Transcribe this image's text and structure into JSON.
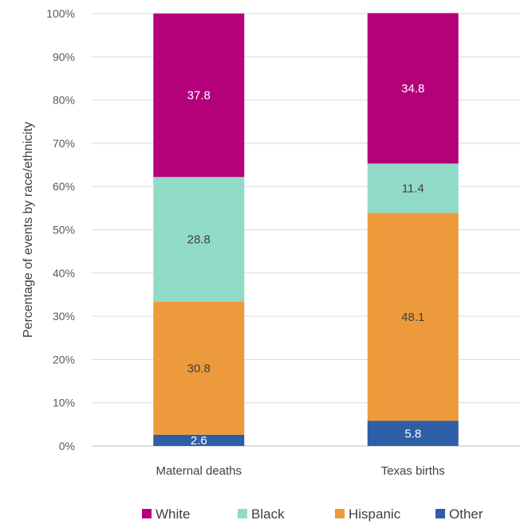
{
  "chart_data": {
    "type": "bar",
    "stacked": true,
    "percent_stacked": true,
    "categories": [
      "Maternal deaths",
      "Texas births"
    ],
    "series": [
      {
        "name": "Other",
        "values": [
          2.6,
          5.8
        ],
        "color": "#2e5fa6",
        "label_color": "#ffffff"
      },
      {
        "name": "Hispanic",
        "values": [
          30.8,
          48.1
        ],
        "color": "#ec9a3b",
        "label_color": "#404040"
      },
      {
        "name": "Black",
        "values": [
          28.8,
          11.4
        ],
        "color": "#92dac8",
        "label_color": "#404040"
      },
      {
        "name": "White",
        "values": [
          37.8,
          34.8
        ],
        "color": "#b5007c",
        "label_color": "#ffffff"
      }
    ],
    "ylabel": "Percentage of events by race/ethnicity",
    "ylim": [
      0,
      100
    ],
    "yticks": [
      "0%",
      "10%",
      "20%",
      "30%",
      "40%",
      "50%",
      "60%",
      "70%",
      "80%",
      "90%",
      "100%"
    ],
    "grid": true,
    "legend_position": "bottom",
    "legend_order": [
      "White",
      "Black",
      "Hispanic",
      "Other"
    ]
  }
}
